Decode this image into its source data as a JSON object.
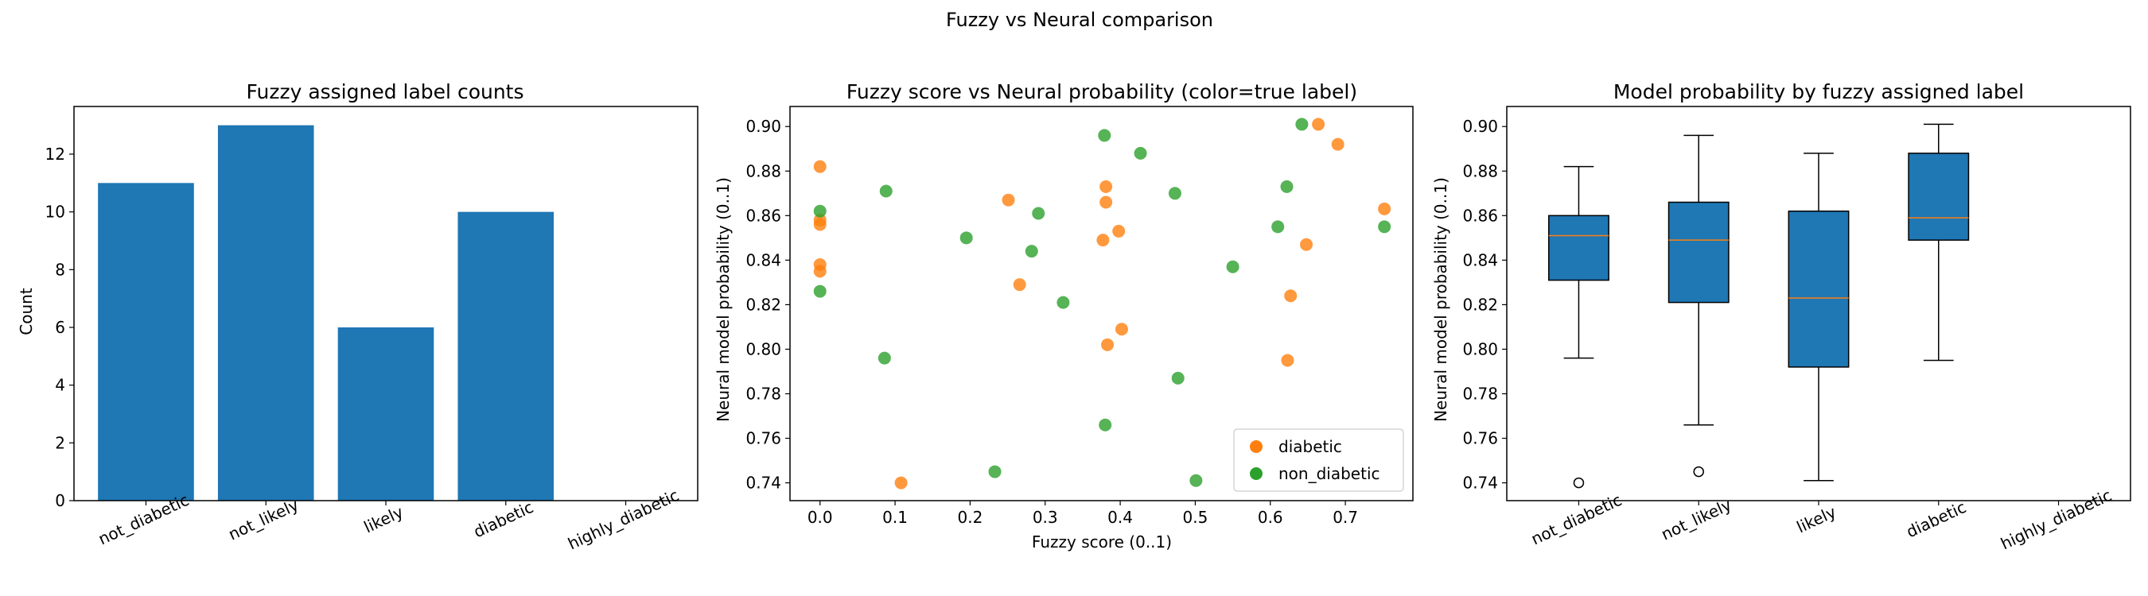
{
  "suptitle": "Fuzzy vs Neural comparison",
  "colors": {
    "bar": "#1f77b4",
    "diabetic": "#ff7f0e",
    "non_diabetic": "#2ca02c",
    "median": "#ff7f0e",
    "box": "#1f77b4"
  },
  "chart_data": [
    {
      "type": "bar",
      "title": "Fuzzy assigned label counts",
      "xlabel": "",
      "ylabel": "Count",
      "categories": [
        "not_diabetic",
        "not_likely",
        "likely",
        "diabetic",
        "highly_diabetic"
      ],
      "values": [
        11,
        13,
        6,
        10,
        0
      ],
      "ylim": [
        0,
        13.65
      ],
      "yticks": [
        0,
        2,
        4,
        6,
        8,
        10,
        12
      ],
      "grid": false
    },
    {
      "type": "scatter",
      "title": "Fuzzy score vs Neural probability (color=true label)",
      "xlabel": "Fuzzy score (0..1)",
      "ylabel": "Neural model probability (0..1)",
      "xlim": [
        -0.04,
        0.79
      ],
      "ylim": [
        0.732,
        0.909
      ],
      "xticks": [
        0.0,
        0.1,
        0.2,
        0.3,
        0.4,
        0.5,
        0.6,
        0.7
      ],
      "yticks": [
        0.74,
        0.76,
        0.78,
        0.8,
        0.82,
        0.84,
        0.86,
        0.88,
        0.9
      ],
      "legend_placement": "lower-right",
      "grid": false,
      "series": [
        {
          "name": "diabetic",
          "color": "#ff7f0e",
          "points": [
            [
              0.0,
              0.882
            ],
            [
              0.0,
              0.858
            ],
            [
              0.0,
              0.856
            ],
            [
              0.0,
              0.838
            ],
            [
              0.0,
              0.835
            ],
            [
              0.108,
              0.74
            ],
            [
              0.251,
              0.867
            ],
            [
              0.266,
              0.829
            ],
            [
              0.377,
              0.849
            ],
            [
              0.381,
              0.873
            ],
            [
              0.381,
              0.866
            ],
            [
              0.383,
              0.802
            ],
            [
              0.398,
              0.853
            ],
            [
              0.402,
              0.809
            ],
            [
              0.623,
              0.795
            ],
            [
              0.627,
              0.824
            ],
            [
              0.648,
              0.847
            ],
            [
              0.664,
              0.901
            ],
            [
              0.69,
              0.892
            ],
            [
              0.752,
              0.863
            ]
          ]
        },
        {
          "name": "non_diabetic",
          "color": "#2ca02c",
          "points": [
            [
              0.0,
              0.862
            ],
            [
              0.0,
              0.826
            ],
            [
              0.088,
              0.871
            ],
            [
              0.086,
              0.796
            ],
            [
              0.195,
              0.85
            ],
            [
              0.233,
              0.745
            ],
            [
              0.282,
              0.844
            ],
            [
              0.291,
              0.861
            ],
            [
              0.324,
              0.821
            ],
            [
              0.379,
              0.896
            ],
            [
              0.38,
              0.766
            ],
            [
              0.427,
              0.888
            ],
            [
              0.473,
              0.87
            ],
            [
              0.477,
              0.787
            ],
            [
              0.501,
              0.741
            ],
            [
              0.55,
              0.837
            ],
            [
              0.61,
              0.855
            ],
            [
              0.622,
              0.873
            ],
            [
              0.642,
              0.901
            ],
            [
              0.752,
              0.855
            ]
          ]
        }
      ]
    },
    {
      "type": "box",
      "title": "Model probability by fuzzy assigned label",
      "xlabel": "",
      "ylabel": "Neural model probability (0..1)",
      "categories": [
        "not_diabetic",
        "not_likely",
        "likely",
        "diabetic",
        "highly_diabetic"
      ],
      "ylim": [
        0.732,
        0.909
      ],
      "yticks": [
        0.74,
        0.76,
        0.78,
        0.8,
        0.82,
        0.84,
        0.86,
        0.88,
        0.9
      ],
      "grid": false,
      "boxes": [
        {
          "whisker_low": 0.796,
          "q1": 0.831,
          "median": 0.851,
          "q3": 0.86,
          "whisker_high": 0.882,
          "outliers": [
            0.74
          ]
        },
        {
          "whisker_low": 0.766,
          "q1": 0.821,
          "median": 0.849,
          "q3": 0.866,
          "whisker_high": 0.896,
          "outliers": [
            0.745
          ]
        },
        {
          "whisker_low": 0.741,
          "q1": 0.792,
          "median": 0.823,
          "q3": 0.862,
          "whisker_high": 0.888,
          "outliers": []
        },
        {
          "whisker_low": 0.795,
          "q1": 0.849,
          "median": 0.859,
          "q3": 0.888,
          "whisker_high": 0.901,
          "outliers": []
        },
        null
      ]
    }
  ]
}
